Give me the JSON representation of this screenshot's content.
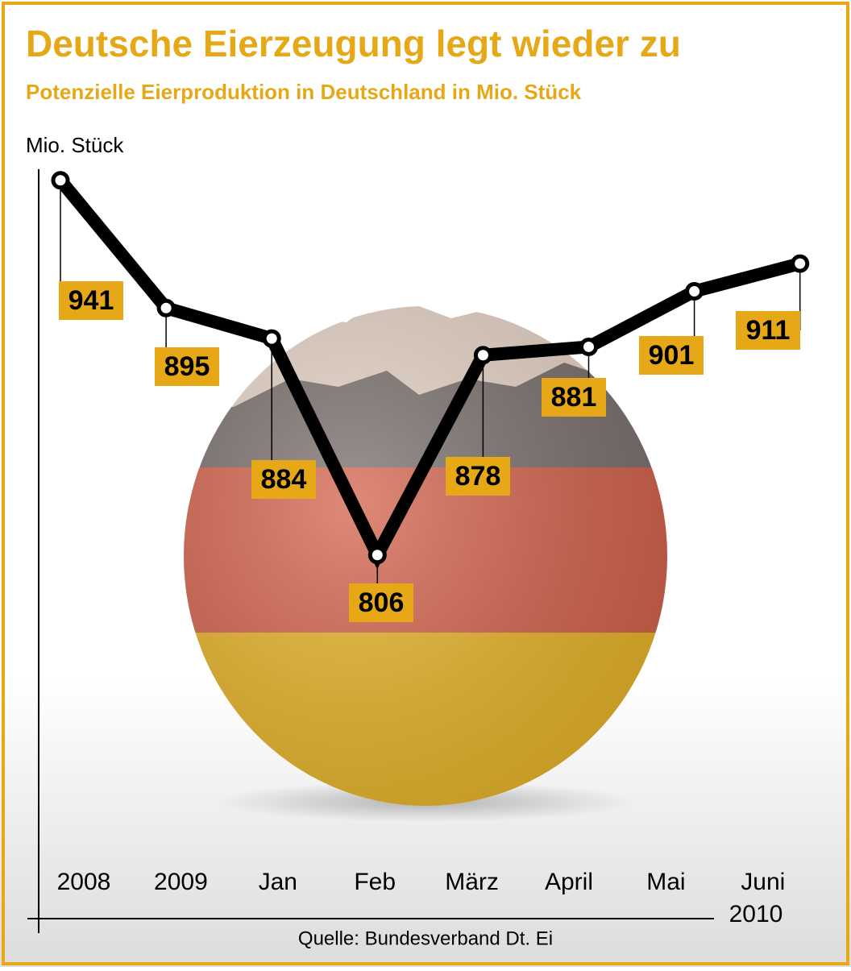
{
  "chart_data": {
    "type": "line",
    "title": "Deutsche Eierzeugung legt wieder zu",
    "subtitle": "Potenzielle Eierproduktion in Deutschland in Mio. Stück",
    "y_label": "Mio. Stück",
    "categories": [
      "2008",
      "2009",
      "Jan",
      "Feb",
      "März",
      "April",
      "Mai",
      "Juni"
    ],
    "x_annotation": "2010",
    "values": [
      941,
      895,
      884,
      806,
      878,
      881,
      901,
      911
    ],
    "color": "#000000",
    "label_color": "#e6a817",
    "ylim": [
      675,
      945
    ],
    "source": "Quelle: Bundesverband Dt. Ei"
  }
}
